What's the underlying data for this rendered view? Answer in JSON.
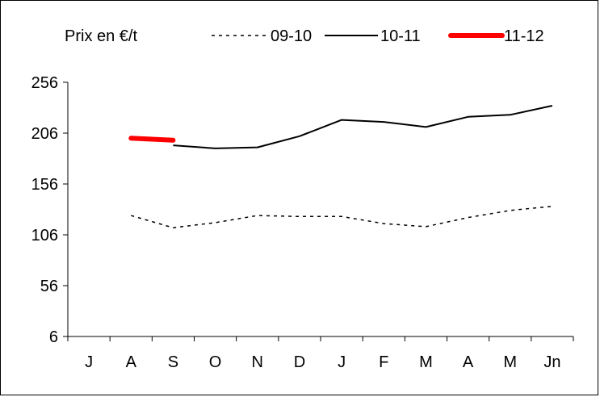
{
  "chart_data": {
    "type": "line",
    "title": "",
    "unit_label": "Prix en €/t",
    "xlabel": "",
    "ylabel": "",
    "categories": [
      "J",
      "A",
      "S",
      "O",
      "N",
      "D",
      "J",
      "F",
      "M",
      "A",
      "M",
      "Jn"
    ],
    "y_ticks": [
      "6",
      "56",
      "106",
      "156",
      "206",
      "256"
    ],
    "ylim": [
      6,
      256
    ],
    "grid": false,
    "legend_position": "top",
    "series": [
      {
        "name": "09-10",
        "color": "#000000",
        "style": "dashed",
        "values": [
          null,
          125,
          113,
          118,
          125,
          124,
          124,
          117,
          114,
          123,
          130,
          134
        ]
      },
      {
        "name": "10-11",
        "color": "#000000",
        "style": "solid",
        "values": [
          null,
          null,
          194,
          191,
          192,
          203,
          219,
          217,
          212,
          222,
          224,
          233
        ]
      },
      {
        "name": "11-12",
        "color": "#ff0000",
        "style": "thick",
        "values": [
          null,
          201,
          199,
          null,
          null,
          null,
          null,
          null,
          null,
          null,
          null,
          null
        ]
      }
    ]
  }
}
